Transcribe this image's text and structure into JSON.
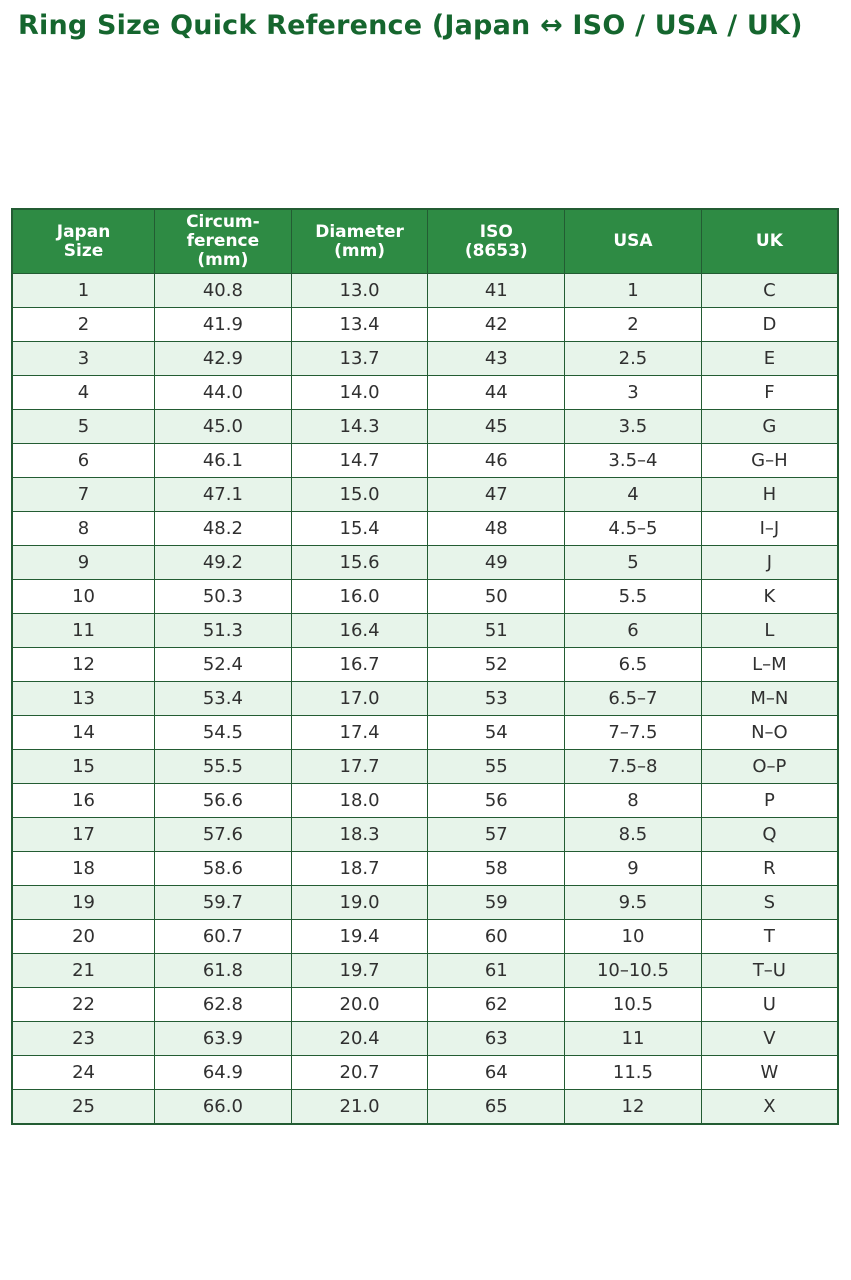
{
  "page": {
    "title": "Ring Size Quick Reference (Japan ↔ ISO / USA / UK)"
  },
  "colors": {
    "title_color": "#15662e",
    "header_bg": "#2e8b44",
    "row_alt": "#e7f4ea",
    "border": "#235c33"
  },
  "table": {
    "headers": [
      "Japan\nSize",
      "Circum-\nference\n(mm)",
      "Diameter\n(mm)",
      "ISO\n(8653)",
      "USA",
      "UK"
    ],
    "rows": [
      [
        "1",
        "40.8",
        "13.0",
        "41",
        "1",
        "C"
      ],
      [
        "2",
        "41.9",
        "13.4",
        "42",
        "2",
        "D"
      ],
      [
        "3",
        "42.9",
        "13.7",
        "43",
        "2.5",
        "E"
      ],
      [
        "4",
        "44.0",
        "14.0",
        "44",
        "3",
        "F"
      ],
      [
        "5",
        "45.0",
        "14.3",
        "45",
        "3.5",
        "G"
      ],
      [
        "6",
        "46.1",
        "14.7",
        "46",
        "3.5–4",
        "G–H"
      ],
      [
        "7",
        "47.1",
        "15.0",
        "47",
        "4",
        "H"
      ],
      [
        "8",
        "48.2",
        "15.4",
        "48",
        "4.5–5",
        "I–J"
      ],
      [
        "9",
        "49.2",
        "15.6",
        "49",
        "5",
        "J"
      ],
      [
        "10",
        "50.3",
        "16.0",
        "50",
        "5.5",
        "K"
      ],
      [
        "11",
        "51.3",
        "16.4",
        "51",
        "6",
        "L"
      ],
      [
        "12",
        "52.4",
        "16.7",
        "52",
        "6.5",
        "L–M"
      ],
      [
        "13",
        "53.4",
        "17.0",
        "53",
        "6.5–7",
        "M–N"
      ],
      [
        "14",
        "54.5",
        "17.4",
        "54",
        "7–7.5",
        "N–O"
      ],
      [
        "15",
        "55.5",
        "17.7",
        "55",
        "7.5–8",
        "O–P"
      ],
      [
        "16",
        "56.6",
        "18.0",
        "56",
        "8",
        "P"
      ],
      [
        "17",
        "57.6",
        "18.3",
        "57",
        "8.5",
        "Q"
      ],
      [
        "18",
        "58.6",
        "18.7",
        "58",
        "9",
        "R"
      ],
      [
        "19",
        "59.7",
        "19.0",
        "59",
        "9.5",
        "S"
      ],
      [
        "20",
        "60.7",
        "19.4",
        "60",
        "10",
        "T"
      ],
      [
        "21",
        "61.8",
        "19.7",
        "61",
        "10–10.5",
        "T–U"
      ],
      [
        "22",
        "62.8",
        "20.0",
        "62",
        "10.5",
        "U"
      ],
      [
        "23",
        "63.9",
        "20.4",
        "63",
        "11",
        "V"
      ],
      [
        "24",
        "64.9",
        "20.7",
        "64",
        "11.5",
        "W"
      ],
      [
        "25",
        "66.0",
        "21.0",
        "65",
        "12",
        "X"
      ]
    ]
  }
}
